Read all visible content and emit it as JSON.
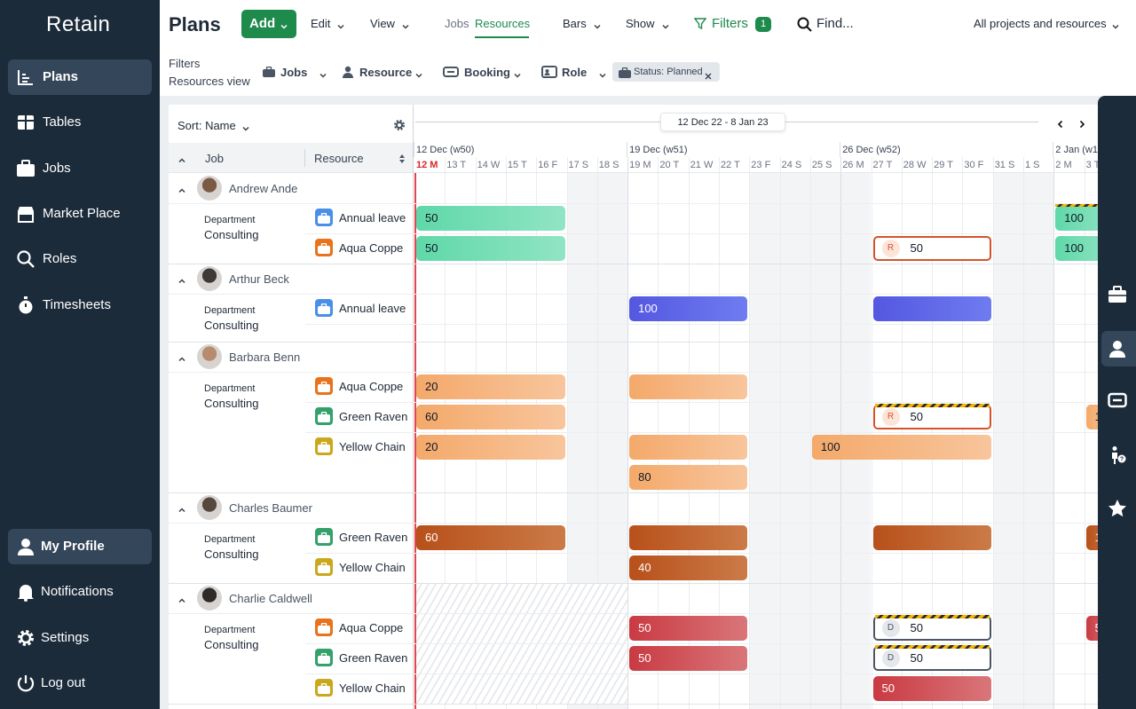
{
  "sidebar": {
    "logo": "Retain",
    "nav": [
      "Plans",
      "Tables",
      "Jobs",
      "Market Place",
      "Roles",
      "Timesheets"
    ],
    "bottom": [
      "My Profile",
      "Notifications",
      "Settings",
      "Log out"
    ]
  },
  "toolbar": {
    "title": "Plans",
    "add": "Add",
    "menus": [
      "Edit",
      "View"
    ],
    "tabs": [
      "Jobs",
      "Resources"
    ],
    "menus2": [
      "Bars",
      "Show"
    ],
    "filters": "Filters",
    "filter_count": "1",
    "find": "Find...",
    "scope": "All projects and resources"
  },
  "filters": {
    "label": "Filters",
    "view": "Resources view",
    "items": [
      "Jobs",
      "Resource",
      "Booking",
      "Role"
    ],
    "chip": "Status: Planned"
  },
  "grid": {
    "sort": "Sort: Name",
    "columns": [
      "Job",
      "Resource"
    ],
    "range": "12 Dec 22 - 8 Jan 23",
    "weeks": [
      "12 Dec (w50)",
      "19 Dec (w51)",
      "26 Dec (w52)",
      "2 Jan (w1)"
    ],
    "days": [
      "12 M",
      "13 T",
      "14 W",
      "15 T",
      "16 F",
      "17 S",
      "18 S",
      "19 M",
      "20 T",
      "21 W",
      "22 T",
      "23 F",
      "24 S",
      "25 S",
      "26 M",
      "27 T",
      "28 W",
      "29 T",
      "30 F",
      "31 S",
      "1 S",
      "2 M",
      "3 T"
    ],
    "people": [
      {
        "name": "Andrew Ande",
        "department": "Department",
        "group": "Consulting",
        "resources": [
          {
            "name": "Annual leave",
            "bars": [
              "50",
              "100"
            ]
          },
          {
            "name": "Aqua Coppe",
            "bars": [
              "50",
              {
                "badge": "R",
                "label": "50"
              },
              "100"
            ]
          }
        ]
      },
      {
        "name": "Arthur Beck",
        "department": "Department",
        "group": "Consulting",
        "resources": [
          {
            "name": "Annual leave",
            "bars": [
              "100"
            ]
          }
        ]
      },
      {
        "name": "Barbara Benn",
        "department": "Department",
        "group": "Consulting",
        "resources": [
          {
            "name": "Aqua Coppe",
            "bars": [
              "20"
            ]
          },
          {
            "name": "Green Raven",
            "bars": [
              "60",
              {
                "badge": "R",
                "label": "50"
              },
              "1"
            ]
          },
          {
            "name": "Yellow Chain",
            "bars": [
              "20",
              "100",
              "80"
            ]
          }
        ]
      },
      {
        "name": "Charles Baumer",
        "department": "Department",
        "group": "Consulting",
        "resources": [
          {
            "name": "Green Raven",
            "bars": [
              "60",
              "1"
            ]
          },
          {
            "name": "Yellow Chain",
            "bars": [
              "40"
            ]
          }
        ]
      },
      {
        "name": "Charlie Caldwell",
        "department": "Department",
        "group": "Consulting",
        "resources": [
          {
            "name": "Aqua Coppe",
            "bars": [
              "50",
              {
                "badge": "D",
                "label": "50"
              },
              "5"
            ]
          },
          {
            "name": "Green Raven",
            "bars": [
              "50",
              {
                "badge": "D",
                "label": "50"
              }
            ]
          },
          {
            "name": "Yellow Chain",
            "bars": [
              "50"
            ]
          }
        ]
      }
    ]
  }
}
